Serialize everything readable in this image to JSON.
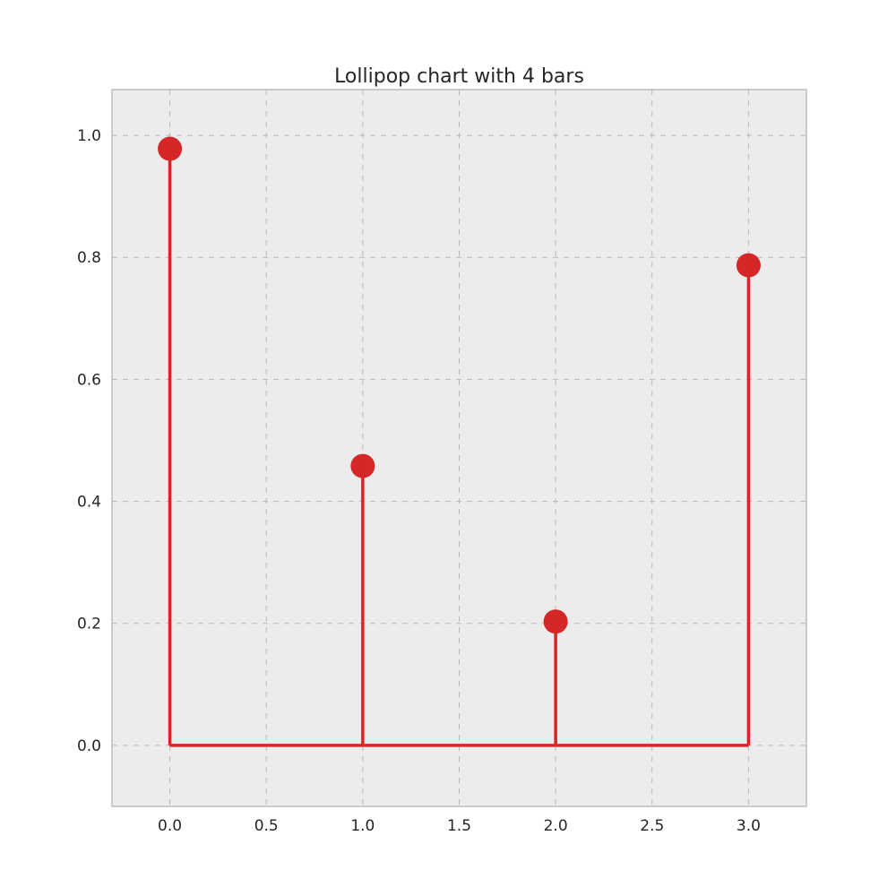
{
  "chart_data": {
    "type": "lollipop",
    "title": "Lollipop chart with 4 bars",
    "xlabel": "",
    "ylabel": "",
    "x": [
      0,
      1,
      2,
      3
    ],
    "values": [
      0.978,
      0.458,
      0.203,
      0.787
    ],
    "baseline": 0,
    "xlim": [
      -0.3,
      3.3
    ],
    "ylim": [
      -0.1,
      1.075
    ],
    "xticks": [
      "0.0",
      "0.5",
      "1.0",
      "1.5",
      "2.0",
      "2.5",
      "3.0"
    ],
    "yticks": [
      "0.0",
      "0.2",
      "0.4",
      "0.6",
      "0.8",
      "1.0"
    ],
    "grid": true,
    "colors": {
      "stem": "#d62728",
      "marker": "#d62728",
      "baseline": "#d62728",
      "plot_background": "#ececec",
      "grid": "#b9b9b9",
      "axes_border": "#bcbcbc"
    }
  }
}
